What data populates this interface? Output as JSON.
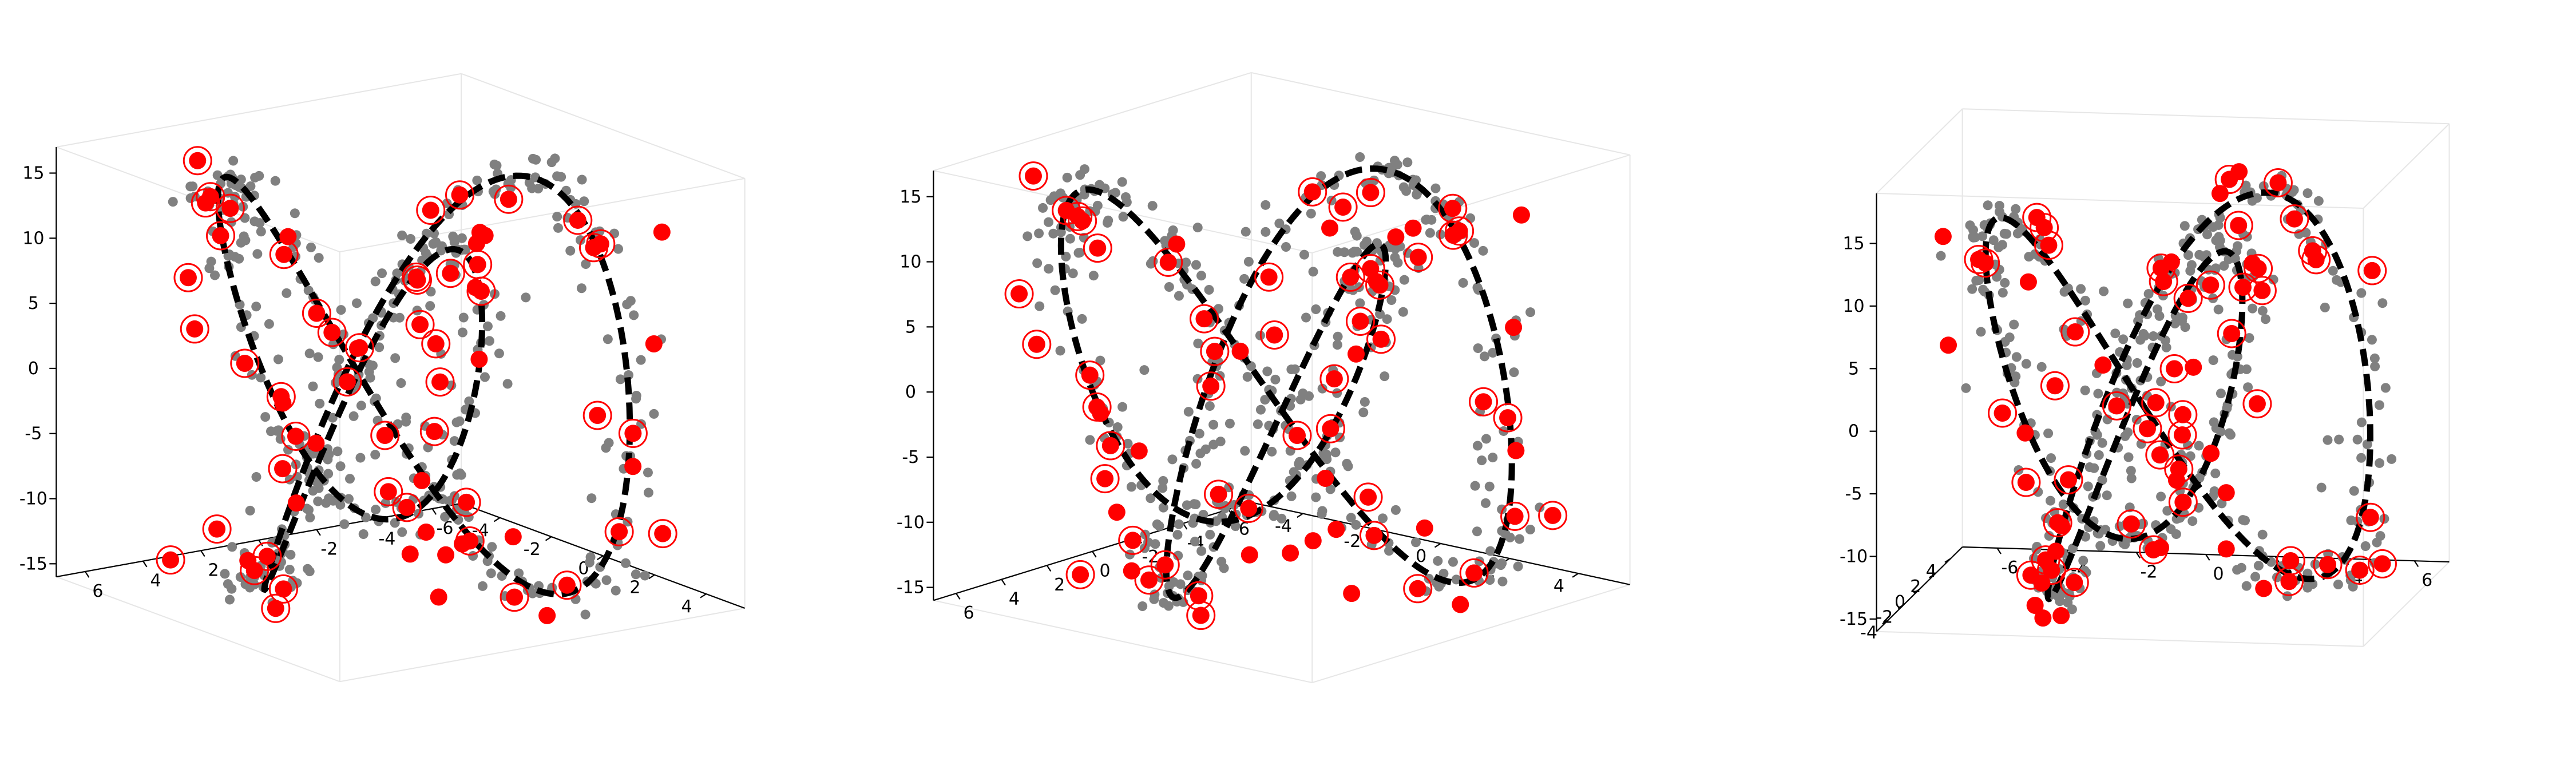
{
  "chart_data": [
    {
      "type": "scatter",
      "panel": "left view",
      "view": {
        "elev": 15,
        "azim": 55
      },
      "title": "",
      "xlabel": "",
      "ylabel": "",
      "zlabel": "",
      "xlim": [
        -7,
        7
      ],
      "ylim": [
        -5.5,
        5.5
      ],
      "zlim": [
        -16,
        17
      ],
      "x_ticks": [
        "-6",
        "-4",
        "-2",
        "0",
        "2",
        "4",
        "6"
      ],
      "y_ticks": [
        "-4",
        "-2",
        "0",
        "2",
        "4"
      ],
      "z_ticks": [
        "-15",
        "-10",
        "-5",
        "0",
        "5",
        "10",
        "15"
      ],
      "grid": false,
      "legend": "none",
      "series": [
        {
          "role": "noisy samples",
          "marker": "small filled dot",
          "color": "#808080"
        },
        {
          "role": "true curve",
          "marker": "thick dashed line",
          "color": "#000000"
        },
        {
          "role": "selected points",
          "marker": "filled dot",
          "color": "#ff0000"
        },
        {
          "role": "highlighted points",
          "marker": "open ring",
          "color": "#ff0000"
        }
      ]
    },
    {
      "type": "scatter",
      "panel": "middle view",
      "view": {
        "elev": 15,
        "azim": 40
      },
      "title": "",
      "xlabel": "",
      "ylabel": "",
      "zlabel": "",
      "xlim": [
        -7,
        7
      ],
      "ylim": [
        -5.5,
        5.5
      ],
      "zlim": [
        -16,
        17
      ],
      "x_ticks": [
        "-6",
        "-4",
        "-2",
        "0",
        "2",
        "4",
        "6"
      ],
      "y_ticks": [
        "-4",
        "-2",
        "0",
        "2",
        "4"
      ],
      "z_ticks": [
        "-15",
        "-10",
        "-5",
        "0",
        "5",
        "10",
        "15"
      ],
      "grid": false,
      "legend": "none",
      "series": [
        {
          "role": "noisy samples",
          "marker": "small filled dot",
          "color": "#808080"
        },
        {
          "role": "true curve",
          "marker": "thick dashed line",
          "color": "#000000"
        },
        {
          "role": "selected points",
          "marker": "filled dot",
          "color": "#ff0000"
        },
        {
          "role": "highlighted points",
          "marker": "open ring",
          "color": "#ff0000"
        }
      ]
    },
    {
      "type": "scatter",
      "panel": "right view",
      "view": {
        "elev": 10,
        "azim": -80
      },
      "title": "",
      "xlabel": "",
      "ylabel": "",
      "zlabel": "",
      "xlim": [
        -7,
        7
      ],
      "ylim": [
        -5.5,
        5.5
      ],
      "zlim": [
        -16,
        19
      ],
      "x_ticks": [
        "-6",
        "-4",
        "-2",
        "0",
        "2",
        "4",
        "6"
      ],
      "y_ticks": [
        "-4",
        "-2",
        "0",
        "2",
        "4"
      ],
      "z_ticks": [
        "-15",
        "-10",
        "-5",
        "0",
        "5",
        "10",
        "15"
      ],
      "grid": false,
      "legend": "none",
      "series": [
        {
          "role": "noisy samples",
          "marker": "small filled dot",
          "color": "#808080"
        },
        {
          "role": "true curve",
          "marker": "thick dashed line",
          "color": "#000000"
        },
        {
          "role": "selected points",
          "marker": "filled dot",
          "color": "#ff0000"
        },
        {
          "role": "highlighted points",
          "marker": "open ring",
          "color": "#ff0000"
        }
      ]
    }
  ],
  "curve": {
    "description": "3-D trefoil-like closed curve",
    "x": "2*sin(t) + 4*sin(2t)",
    "y": "2*cos(t) - 4*cos(2t)",
    "z": "-14*sin(3t)",
    "t_range": [
      0,
      6.2832
    ],
    "noise_sd": 0.45,
    "sample_count": 420,
    "selected_count": 70,
    "ring_fraction": 0.65
  },
  "colors": {
    "samples": "#808080",
    "curve": "#000000",
    "selected": "#ff0000",
    "ring": "#ff0000",
    "pane_edge": "#e6e6e6"
  }
}
